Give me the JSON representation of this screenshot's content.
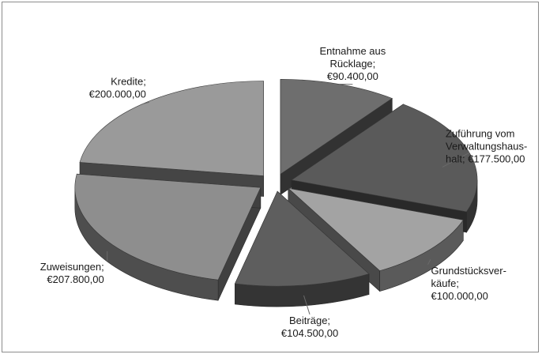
{
  "chart_data": {
    "type": "pie",
    "style": "3d-exploded",
    "series": [
      {
        "categories": [
          "Entnahme aus Rücklage",
          "Zuführung vom Verwaltungshaushalt",
          "Grundstücksverkäufe",
          "Beiträge",
          "Zuweisungen",
          "Kredite"
        ],
        "values": [
          90400,
          177500,
          100000,
          104500,
          207800,
          200000
        ]
      }
    ],
    "labels": [
      {
        "lines": [
          "Entnahme aus",
          "Rücklage;",
          "€90.400,00"
        ]
      },
      {
        "lines": [
          "Zuführung vom",
          "Verwaltungshaus-",
          "halt; €177.500,00"
        ]
      },
      {
        "lines": [
          "Grundstücksver-",
          "käufe;",
          "€100.000,00"
        ]
      },
      {
        "lines": [
          "Beiträge;",
          "€104.500,00"
        ]
      },
      {
        "lines": [
          "Zuweisungen;",
          "€207.800,00"
        ]
      },
      {
        "lines": [
          "Kredite;",
          "€200.000,00"
        ]
      }
    ],
    "slice_colors": [
      "#6e6e6e",
      "#5a5a5a",
      "#a3a3a3",
      "#5e5e5e",
      "#8e8e8e",
      "#9a9a9a"
    ],
    "legend": "none"
  }
}
